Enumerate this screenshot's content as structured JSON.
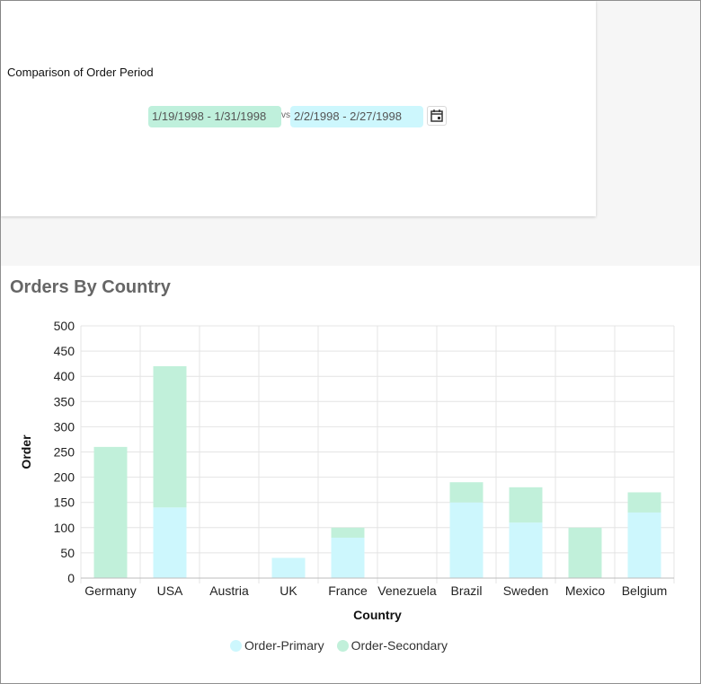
{
  "period": {
    "title": "Comparison of Order Period",
    "range_a": "1/19/1998 - 1/31/1998",
    "vs": "vs",
    "range_b": "2/2/1998 - 2/27/1998",
    "range_a_color": "#bff0dc",
    "range_b_color": "#cdf7fd",
    "calendar_icon": "calendar-icon"
  },
  "chart_data": {
    "type": "bar",
    "stacked": true,
    "title": "Orders By Country",
    "xlabel": "Country",
    "ylabel": "Order",
    "ylim": [
      0,
      500
    ],
    "yticks": [
      0,
      50,
      100,
      150,
      200,
      250,
      300,
      350,
      400,
      450,
      500
    ],
    "categories": [
      "Germany",
      "USA",
      "Austria",
      "UK",
      "France",
      "Venezuela",
      "Brazil",
      "Sweden",
      "Mexico",
      "Belgium"
    ],
    "series": [
      {
        "name": "Order-Primary",
        "color": "#cdf7fd",
        "values": [
          0,
          140,
          0,
          40,
          80,
          0,
          150,
          110,
          0,
          130
        ]
      },
      {
        "name": "Order-Secondary",
        "color": "#c1f0da",
        "values": [
          260,
          280,
          0,
          0,
          20,
          0,
          40,
          70,
          100,
          40
        ]
      }
    ],
    "grid": true,
    "legend_position": "bottom"
  }
}
